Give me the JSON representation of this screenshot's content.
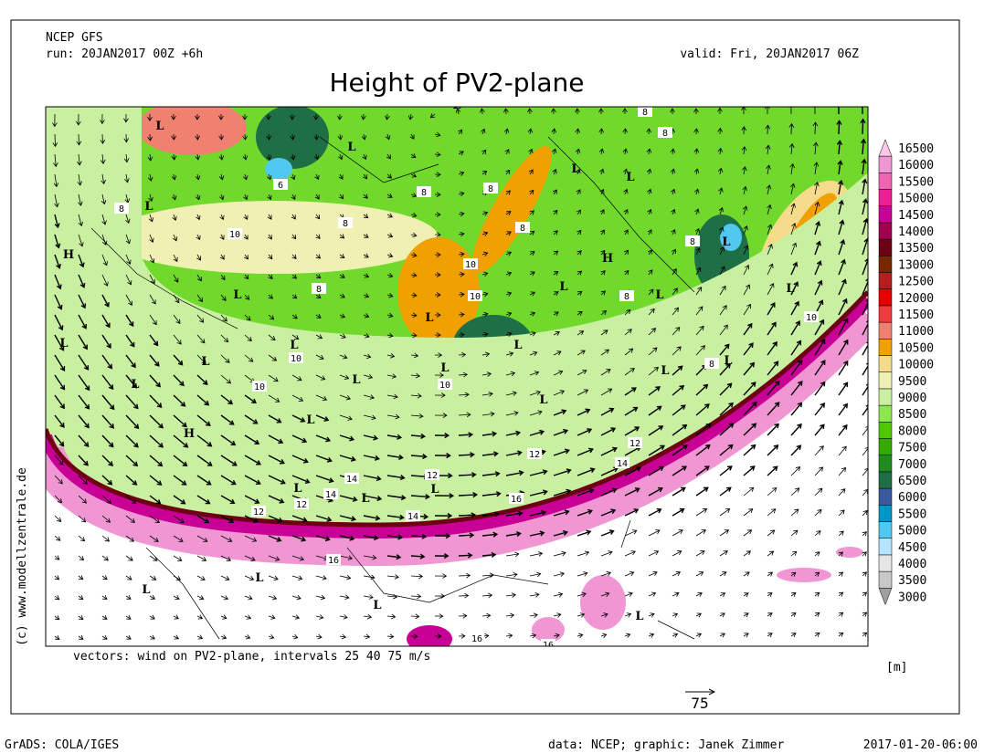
{
  "header": {
    "model": "NCEP GFS",
    "run": "run: 20JAN2017 00Z +6h",
    "valid": "valid: Fri, 20JAN2017 06Z",
    "title": "Height of PV2-plane"
  },
  "copyright": "(c) www.modellzentrale.de",
  "vectors_note": "vectors: wind on PV2-plane, intervals 25 40 75 m/s",
  "reference_vector": "75",
  "colorbar": {
    "unit": "[m]",
    "levels": [
      {
        "value": 3000,
        "color": "#a0a0a0"
      },
      {
        "value": 3500,
        "color": "#c8c8c8"
      },
      {
        "value": 4000,
        "color": "#e6e6e6"
      },
      {
        "value": 4500,
        "color": "#b4e6ff"
      },
      {
        "value": 5000,
        "color": "#50c8f0"
      },
      {
        "value": 5500,
        "color": "#0096c8"
      },
      {
        "value": 6000,
        "color": "#3c5aa0"
      },
      {
        "value": 6500,
        "color": "#1e6e46"
      },
      {
        "value": 7000,
        "color": "#1e8c1e"
      },
      {
        "value": 7500,
        "color": "#32aa00"
      },
      {
        "value": 8000,
        "color": "#50c800"
      },
      {
        "value": 8500,
        "color": "#8ce650"
      },
      {
        "value": 9000,
        "color": "#c8f0a0"
      },
      {
        "value": 9500,
        "color": "#f0f0b4"
      },
      {
        "value": 10000,
        "color": "#f5dc8c"
      },
      {
        "value": 10500,
        "color": "#f0a000"
      },
      {
        "value": 11000,
        "color": "#f08070"
      },
      {
        "value": 11500,
        "color": "#f03c3c"
      },
      {
        "value": 12000,
        "color": "#e60000"
      },
      {
        "value": 12500,
        "color": "#b41e1e"
      },
      {
        "value": 13000,
        "color": "#782800"
      },
      {
        "value": 13500,
        "color": "#6e0014"
      },
      {
        "value": 14000,
        "color": "#a00050"
      },
      {
        "value": 14500,
        "color": "#c80096"
      },
      {
        "value": 15000,
        "color": "#f01e96"
      },
      {
        "value": 15500,
        "color": "#f064b4"
      },
      {
        "value": 16000,
        "color": "#f096d2"
      },
      {
        "value": 16500,
        "color": "#fac8e6"
      }
    ]
  },
  "map_labels": [
    "L",
    "L",
    "L",
    "L",
    "L",
    "L",
    "L",
    "H",
    "L",
    "H",
    "L",
    "L",
    "L",
    "L",
    "L",
    "L",
    "L",
    "L",
    "L",
    "L",
    "L",
    "L",
    "L",
    "L",
    "L",
    "L",
    "H",
    "L",
    "L",
    "L",
    "L",
    "L",
    "L",
    "L",
    "6",
    "8",
    "10",
    "8",
    "8",
    "10",
    "10",
    "8",
    "8",
    "8",
    "8",
    "8",
    "8",
    "8",
    "8",
    "10",
    "10",
    "10",
    "10",
    "12",
    "12",
    "14",
    "14",
    "14",
    "12",
    "12",
    "12",
    "16",
    "14",
    "16",
    "16",
    "16"
  ],
  "footer": {
    "software": "GrADS: COLA/IGES",
    "credits": "data: NCEP; graphic: Janek Zimmer",
    "timestamp": "2017-01-20-06:00"
  }
}
